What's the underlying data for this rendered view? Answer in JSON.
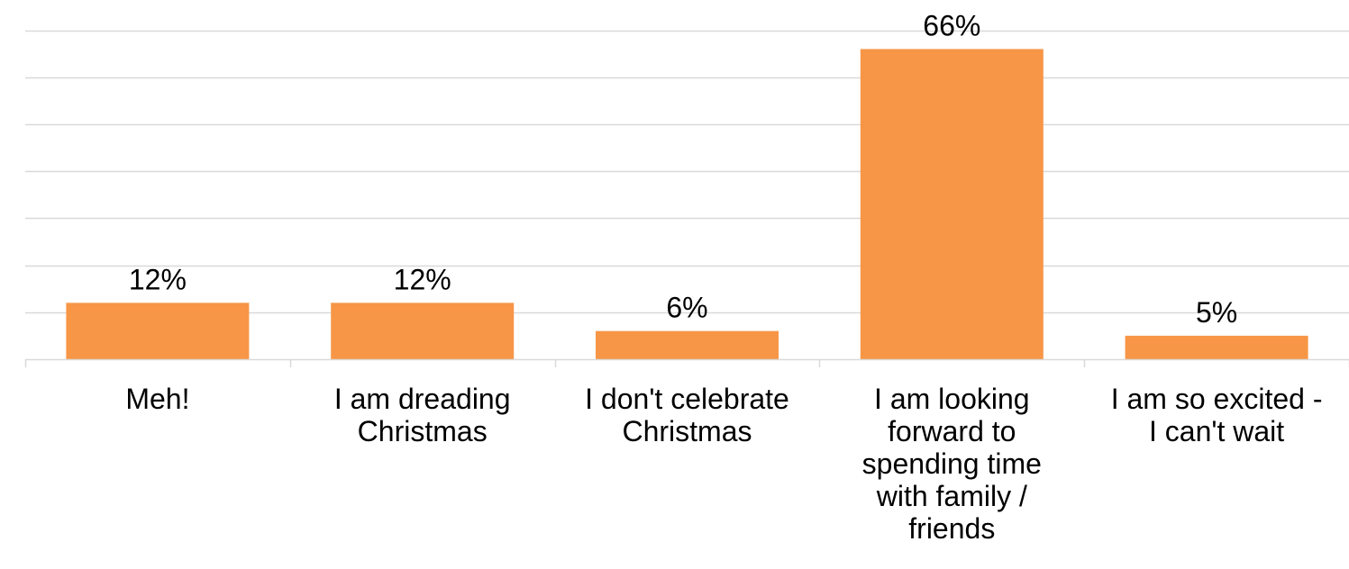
{
  "chart_data": {
    "type": "bar",
    "categories": [
      "Meh!",
      "I am dreading Christmas",
      "I don't celebrate Christmas",
      "I am looking forward to spending time with family / friends",
      "I am so excited - I can't wait"
    ],
    "category_lines": [
      [
        "Meh!"
      ],
      [
        "I am dreading",
        "Christmas"
      ],
      [
        "I don't celebrate",
        "Christmas"
      ],
      [
        "I am looking",
        "forward to",
        "spending time",
        "with family /",
        "friends"
      ],
      [
        "I am so excited -",
        "I can't wait"
      ]
    ],
    "values": [
      12,
      12,
      6,
      66,
      5
    ],
    "data_labels": [
      "12%",
      "12%",
      "6%",
      "66%",
      "5%"
    ],
    "value_unit": "%",
    "ylim": [
      0,
      70
    ],
    "gridlines": true,
    "y_axis_visible": false,
    "legend": "none",
    "bar_color": "#F79646",
    "grid_color": "#D9D9D9"
  }
}
